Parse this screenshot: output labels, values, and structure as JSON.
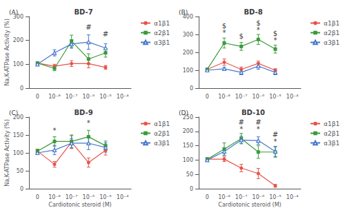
{
  "chart_data": [
    {
      "type": "line",
      "title": "BD-7",
      "panel_label": "(A)",
      "categories": [
        "0",
        "10⁻⁸",
        "10⁻⁷",
        "10⁻⁶",
        "10⁻⁵",
        "10⁻⁴"
      ],
      "series": [
        {
          "name": "α1β1",
          "color": "#e8524a",
          "marker": "circle",
          "values": [
            105,
            92,
            103,
            103,
            87,
            null
          ],
          "errors": [
            5,
            8,
            12,
            18,
            8,
            null
          ]
        },
        {
          "name": "α2β1",
          "color": "#3a9a3a",
          "marker": "square",
          "values": [
            105,
            83,
            197,
            122,
            148,
            null
          ],
          "errors": [
            5,
            10,
            25,
            22,
            18,
            null
          ]
        },
        {
          "name": "α3β1",
          "color": "#4477cc",
          "marker": "triangle_open",
          "values": [
            100,
            148,
            185,
            193,
            168,
            null
          ],
          "errors": [
            5,
            13,
            18,
            30,
            18,
            null
          ]
        }
      ],
      "annotations": [
        {
          "text": "#",
          "x": "10⁻⁶",
          "y": 240
        },
        {
          "text": "#",
          "x": "10⁻⁵",
          "y": 212
        }
      ],
      "ylim": [
        0,
        300
      ],
      "yticks": [
        0,
        100,
        200,
        300
      ],
      "ylabel": "Na,K-ATPase Activity (%)",
      "grid": false,
      "legend": "right"
    },
    {
      "type": "line",
      "title": "BD-8",
      "panel_label": "(B)",
      "categories": [
        "0",
        "10⁻⁸",
        "10⁻⁷",
        "10⁻⁶",
        "10⁻⁵",
        "10⁻⁴"
      ],
      "series": [
        {
          "name": "α1β1",
          "color": "#e8524a",
          "marker": "circle",
          "values": [
            105,
            145,
            105,
            138,
            100,
            null
          ],
          "errors": [
            5,
            18,
            13,
            13,
            8,
            null
          ]
        },
        {
          "name": "α2β1",
          "color": "#3a9a3a",
          "marker": "square",
          "values": [
            105,
            252,
            233,
            272,
            218,
            null
          ],
          "errors": [
            5,
            28,
            22,
            28,
            22,
            null
          ]
        },
        {
          "name": "α3β1",
          "color": "#4477cc",
          "marker": "triangle_open",
          "values": [
            100,
            108,
            88,
            123,
            88,
            null
          ],
          "errors": [
            5,
            8,
            13,
            18,
            13,
            null
          ]
        }
      ],
      "annotations": [
        {
          "text": "$",
          "x": "10⁻⁸",
          "y": 305
        },
        {
          "text": "*",
          "x": "10⁻⁸",
          "y": 290
        },
        {
          "text": "$",
          "x": "10⁻⁷",
          "y": 272
        },
        {
          "text": "$",
          "x": "10⁻⁶",
          "y": 320
        },
        {
          "text": "*",
          "x": "10⁻⁶",
          "y": 305
        },
        {
          "text": "$",
          "x": "10⁻⁵",
          "y": 262
        },
        {
          "text": "*",
          "x": "10⁻⁵",
          "y": 247
        }
      ],
      "ylim": [
        0,
        400
      ],
      "yticks": [
        0,
        100,
        200,
        300,
        400
      ],
      "grid": false,
      "legend": "right"
    },
    {
      "type": "line",
      "title": "BD-9",
      "panel_label": "(C)",
      "categories": [
        "0",
        "10⁻⁸",
        "10⁻⁷",
        "10⁻⁶",
        "10⁻⁵",
        "10⁻⁴"
      ],
      "series": [
        {
          "name": "α1β1",
          "color": "#e8524a",
          "marker": "circle",
          "values": [
            105,
            68,
            130,
            73,
            107,
            null
          ],
          "errors": [
            5,
            8,
            18,
            13,
            13,
            null
          ]
        },
        {
          "name": "α2β1",
          "color": "#3a9a3a",
          "marker": "square",
          "values": [
            105,
            132,
            132,
            145,
            120,
            null
          ],
          "errors": [
            5,
            13,
            18,
            18,
            13,
            null
          ]
        },
        {
          "name": "α3β1",
          "color": "#4477cc",
          "marker": "triangle_open",
          "values": [
            100,
            108,
            127,
            127,
            115,
            null
          ],
          "errors": [
            5,
            13,
            13,
            18,
            13,
            null
          ]
        }
      ],
      "annotations": [
        {
          "text": "*",
          "x": "10⁻⁸",
          "y": 153
        },
        {
          "text": "*",
          "x": "10⁻⁶",
          "y": 175
        }
      ],
      "ylim": [
        0,
        200
      ],
      "yticks": [
        0,
        50,
        100,
        150,
        200
      ],
      "xlabel": "Cardiotonic steroid (M)",
      "ylabel": "Na,K-ATPase Activity (%)",
      "grid": false,
      "legend": "right"
    },
    {
      "type": "line",
      "title": "BD-10",
      "panel_label": "(D)",
      "categories": [
        "0",
        "10⁻⁸",
        "10⁻⁷",
        "10⁻⁶",
        "10⁻⁵",
        "10⁻⁴"
      ],
      "series": [
        {
          "name": "α1β1",
          "color": "#e8524a",
          "marker": "circle",
          "values": [
            103,
            103,
            72,
            53,
            10,
            null
          ],
          "errors": [
            5,
            8,
            13,
            18,
            5,
            null
          ]
        },
        {
          "name": "α2β1",
          "color": "#3a9a3a",
          "marker": "square",
          "values": [
            103,
            138,
            175,
            128,
            128,
            null
          ],
          "errors": [
            5,
            22,
            18,
            22,
            18,
            null
          ]
        },
        {
          "name": "α3β1",
          "color": "#4477cc",
          "marker": "triangle_open",
          "values": [
            100,
            130,
            170,
            168,
            130,
            null
          ],
          "errors": [
            5,
            13,
            13,
            13,
            18,
            null
          ]
        }
      ],
      "annotations": [
        {
          "text": "#",
          "x": "10⁻⁷",
          "y": 207
        },
        {
          "text": "*",
          "x": "10⁻⁷",
          "y": 195
        },
        {
          "text": "#",
          "x": "10⁻⁶",
          "y": 207
        },
        {
          "text": "*",
          "x": "10⁻⁶",
          "y": 195
        },
        {
          "text": "#",
          "x": "10⁻⁵",
          "y": 165
        },
        {
          "text": "*",
          "x": "10⁻⁵",
          "y": 153
        }
      ],
      "ylim": [
        0,
        250
      ],
      "yticks": [
        0,
        50,
        100,
        150,
        200,
        250
      ],
      "xlabel": "Cardiotonic steroid (M)",
      "grid": false,
      "legend": "right"
    }
  ]
}
